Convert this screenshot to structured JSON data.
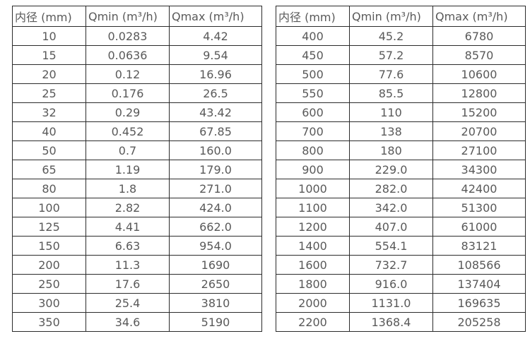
{
  "colors": {
    "background": "#ffffff",
    "text": "#595959",
    "border": "#2b2b2b"
  },
  "chart_data": [
    {
      "type": "table",
      "title": "",
      "columns": [
        "内径 (mm)",
        "Qmin (m³/h)",
        "Qmax (m³/h)"
      ],
      "rows": [
        [
          "10",
          "0.0283",
          "4.42"
        ],
        [
          "15",
          "0.0636",
          "9.54"
        ],
        [
          "20",
          "0.12",
          "16.96"
        ],
        [
          "25",
          "0.176",
          "26.5"
        ],
        [
          "32",
          "0.29",
          "43.42"
        ],
        [
          "40",
          "0.452",
          "67.85"
        ],
        [
          "50",
          "0.7",
          "160.0"
        ],
        [
          "65",
          "1.19",
          "179.0"
        ],
        [
          "80",
          "1.8",
          "271.0"
        ],
        [
          "100",
          "2.82",
          "424.0"
        ],
        [
          "125",
          "4.41",
          "662.0"
        ],
        [
          "150",
          "6.63",
          "954.0"
        ],
        [
          "200",
          "11.3",
          "1690"
        ],
        [
          "250",
          "17.6",
          "2650"
        ],
        [
          "300",
          "25.4",
          "3810"
        ],
        [
          "350",
          "34.6",
          "5190"
        ]
      ]
    },
    {
      "type": "table",
      "title": "",
      "columns": [
        "内径 (mm)",
        "Qmin (m³/h)",
        "Qmax (m³/h)"
      ],
      "rows": [
        [
          "400",
          "45.2",
          "6780"
        ],
        [
          "450",
          "57.2",
          "8570"
        ],
        [
          "500",
          "77.6",
          "10600"
        ],
        [
          "550",
          "85.5",
          "12800"
        ],
        [
          "600",
          "110",
          "15200"
        ],
        [
          "700",
          "138",
          "20700"
        ],
        [
          "800",
          "180",
          "27100"
        ],
        [
          "900",
          "229.0",
          "34300"
        ],
        [
          "1000",
          "282.0",
          "42400"
        ],
        [
          "1100",
          "342.0",
          "51300"
        ],
        [
          "1200",
          "407.0",
          "61000"
        ],
        [
          "1400",
          "554.1",
          "83121"
        ],
        [
          "1600",
          "732.7",
          "108566"
        ],
        [
          "1800",
          "916.0",
          "137404"
        ],
        [
          "2000",
          "1131.0",
          "169635"
        ],
        [
          "2200",
          "1368.4",
          "205258"
        ]
      ]
    }
  ]
}
